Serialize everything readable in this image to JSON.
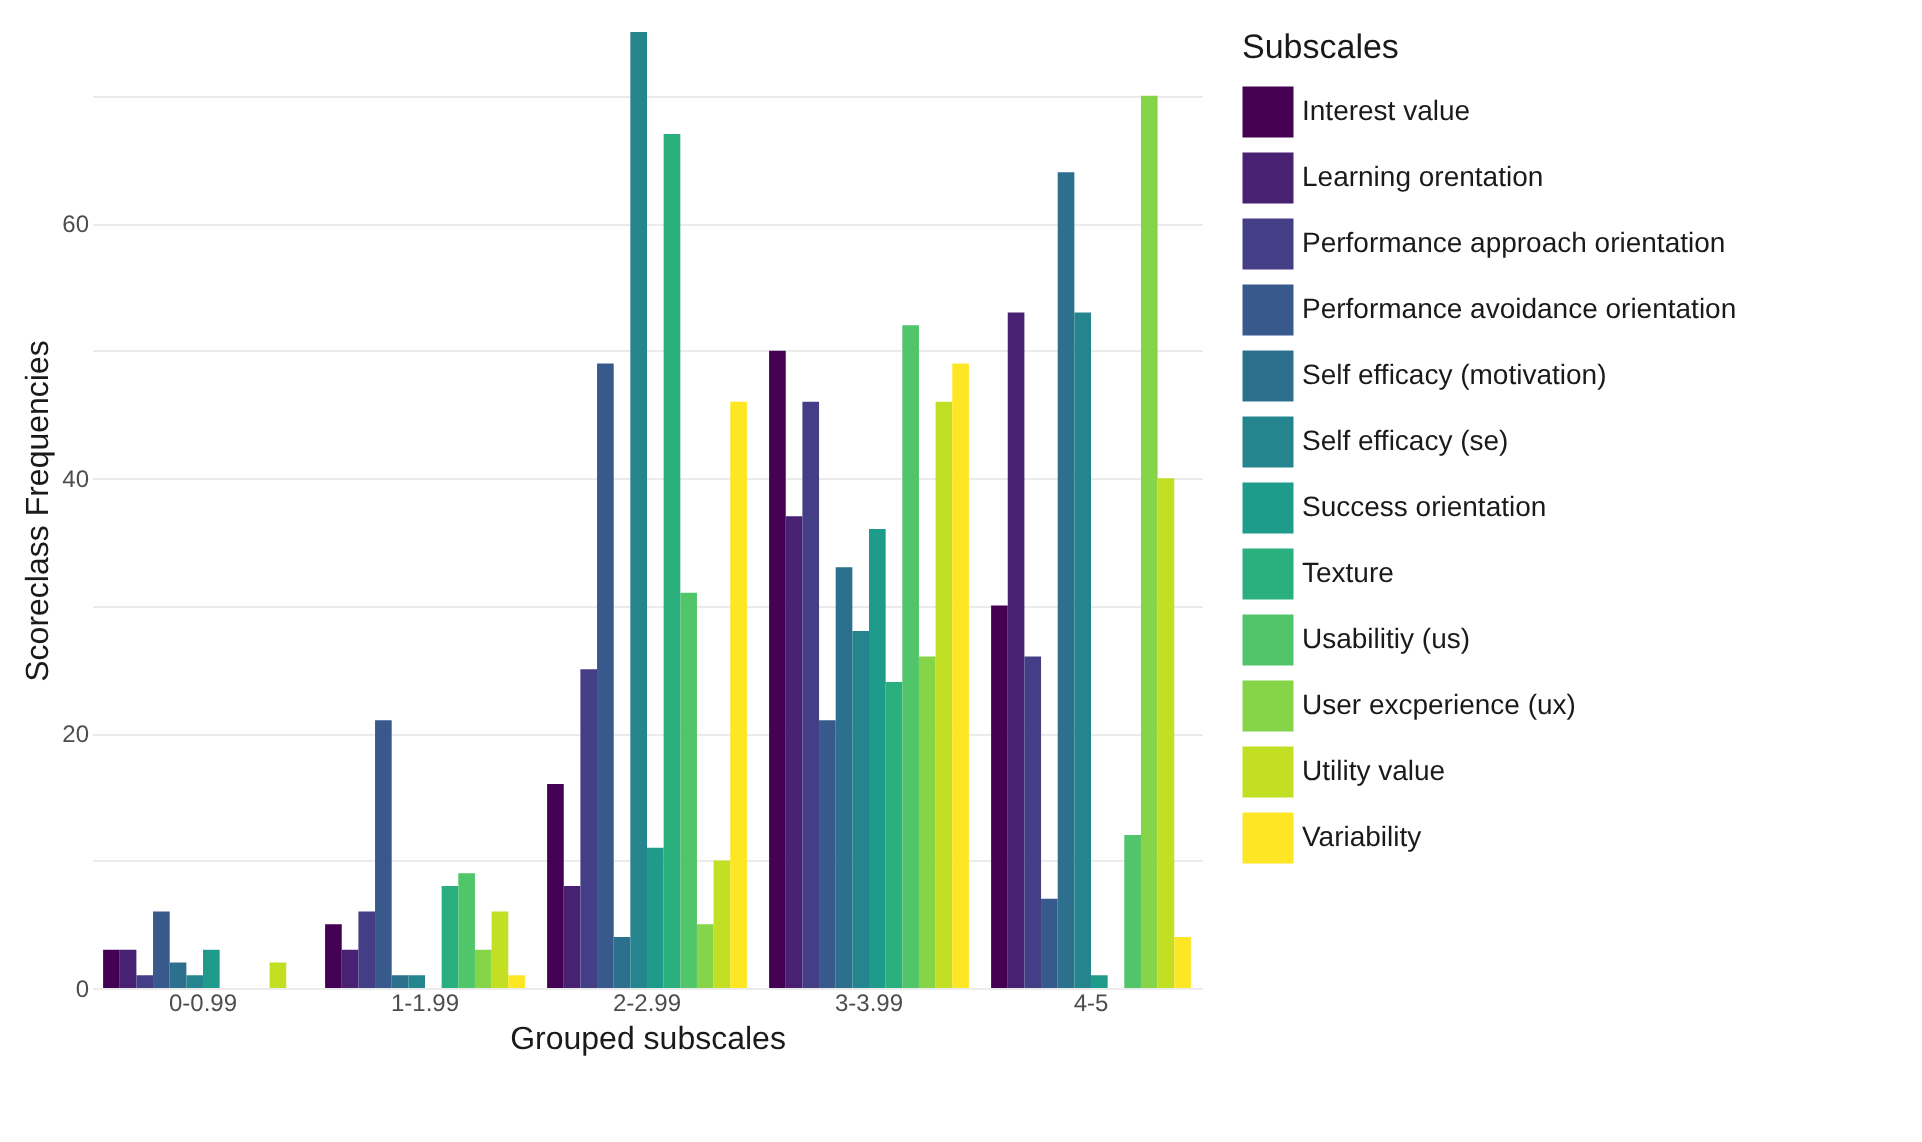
{
  "chart_data": {
    "type": "bar",
    "xlabel": "Grouped subscales",
    "ylabel": "Scoreclass Frequencies",
    "legend_title": "Subscales",
    "categories": [
      "0-0.99",
      "1-1.99",
      "2-2.99",
      "3-3.99",
      "4-5"
    ],
    "series": [
      {
        "name": "Interest value",
        "color": "#440154",
        "values": [
          3,
          5,
          16,
          50,
          30
        ]
      },
      {
        "name": "Learning orentation",
        "color": "#482173",
        "values": [
          3,
          3,
          8,
          37,
          53
        ]
      },
      {
        "name": "Performance approach orientation",
        "color": "#433e85",
        "values": [
          1,
          6,
          25,
          46,
          26
        ]
      },
      {
        "name": "Performance avoidance orientation",
        "color": "#38598c",
        "values": [
          6,
          21,
          49,
          21,
          7
        ]
      },
      {
        "name": "Self efficacy (motivation)",
        "color": "#2d708e",
        "values": [
          2,
          1,
          4,
          33,
          64
        ]
      },
      {
        "name": "Self efficacy (se)",
        "color": "#25858e",
        "values": [
          1,
          1,
          75,
          28,
          53
        ]
      },
      {
        "name": "Success orientation",
        "color": "#1e9b8a",
        "values": [
          3,
          null,
          11,
          36,
          1
        ]
      },
      {
        "name": "Texture",
        "color": "#2ab07f",
        "values": [
          null,
          8,
          67,
          24,
          null
        ]
      },
      {
        "name": "Usabilitiy (us)",
        "color": "#51c56a",
        "values": [
          null,
          9,
          31,
          52,
          12
        ]
      },
      {
        "name": "User excperience (ux)",
        "color": "#86d549",
        "values": [
          null,
          3,
          5,
          26,
          70
        ]
      },
      {
        "name": "Utility value",
        "color": "#c2df23",
        "values": [
          2,
          6,
          10,
          46,
          40
        ]
      },
      {
        "name": "Variability",
        "color": "#fde725",
        "values": [
          null,
          1,
          46,
          49,
          4
        ]
      }
    ],
    "ylim": [
      0,
      75
    ],
    "yticks": [
      0,
      {
        "value": 10,
        "label": null
      },
      20,
      {
        "value": 30,
        "label": null
      },
      40,
      {
        "value": 50,
        "label": null
      },
      60,
      {
        "value": 70,
        "label": null
      }
    ],
    "grid": true,
    "legend": "right"
  }
}
